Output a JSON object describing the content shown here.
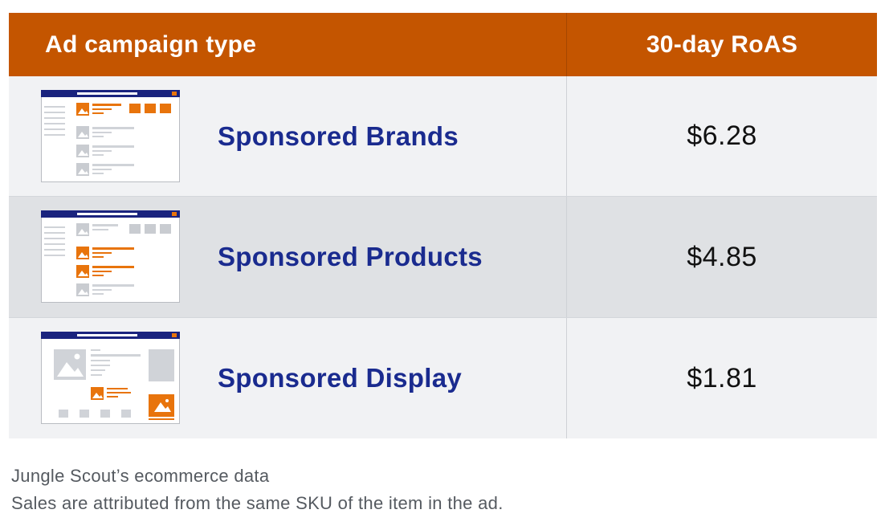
{
  "table": {
    "headers": {
      "campaign_type": "Ad campaign type",
      "roas": "30-day RoAS"
    },
    "rows": [
      {
        "name": "Sponsored Brands",
        "value": "$6.28",
        "thumbnail_icon": "sponsored-brands-layout-icon"
      },
      {
        "name": "Sponsored Products",
        "value": "$4.85",
        "thumbnail_icon": "sponsored-products-layout-icon"
      },
      {
        "name": "Sponsored Display",
        "value": "$1.81",
        "thumbnail_icon": "sponsored-display-layout-icon"
      }
    ]
  },
  "footer": {
    "line1": "Jungle Scout’s ecommerce data",
    "line2": "Sales are attributed from the same SKU of the item in the ad."
  },
  "colors": {
    "header_bg": "#c45500",
    "name_text": "#1a2b8f",
    "accent_orange": "#e8740c",
    "nav_blue": "#1a237e"
  }
}
